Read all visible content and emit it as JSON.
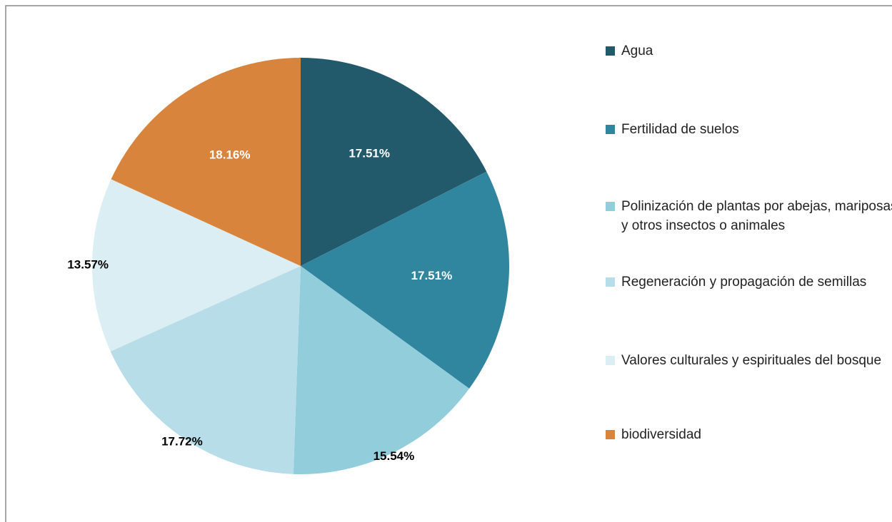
{
  "chart_data": {
    "type": "pie",
    "categories": [
      "Agua",
      "Fertilidad de suelos",
      "Polinización de plantas por abejas, mariposas y otros insectos o animales",
      "Regeneración y propagación de semillas",
      "Valores culturales y espirituales del bosque",
      "biodiversidad"
    ],
    "values": [
      17.51,
      17.51,
      15.54,
      17.72,
      13.57,
      18.16
    ],
    "value_labels": [
      "17.51%",
      "17.51%",
      "15.54%",
      "17.72%",
      "13.57%",
      "18.16%"
    ],
    "colors": [
      "#235a6b",
      "#31869f",
      "#92cddc",
      "#b7dde8",
      "#daeef3",
      "#d9843c"
    ],
    "legend": "right"
  }
}
